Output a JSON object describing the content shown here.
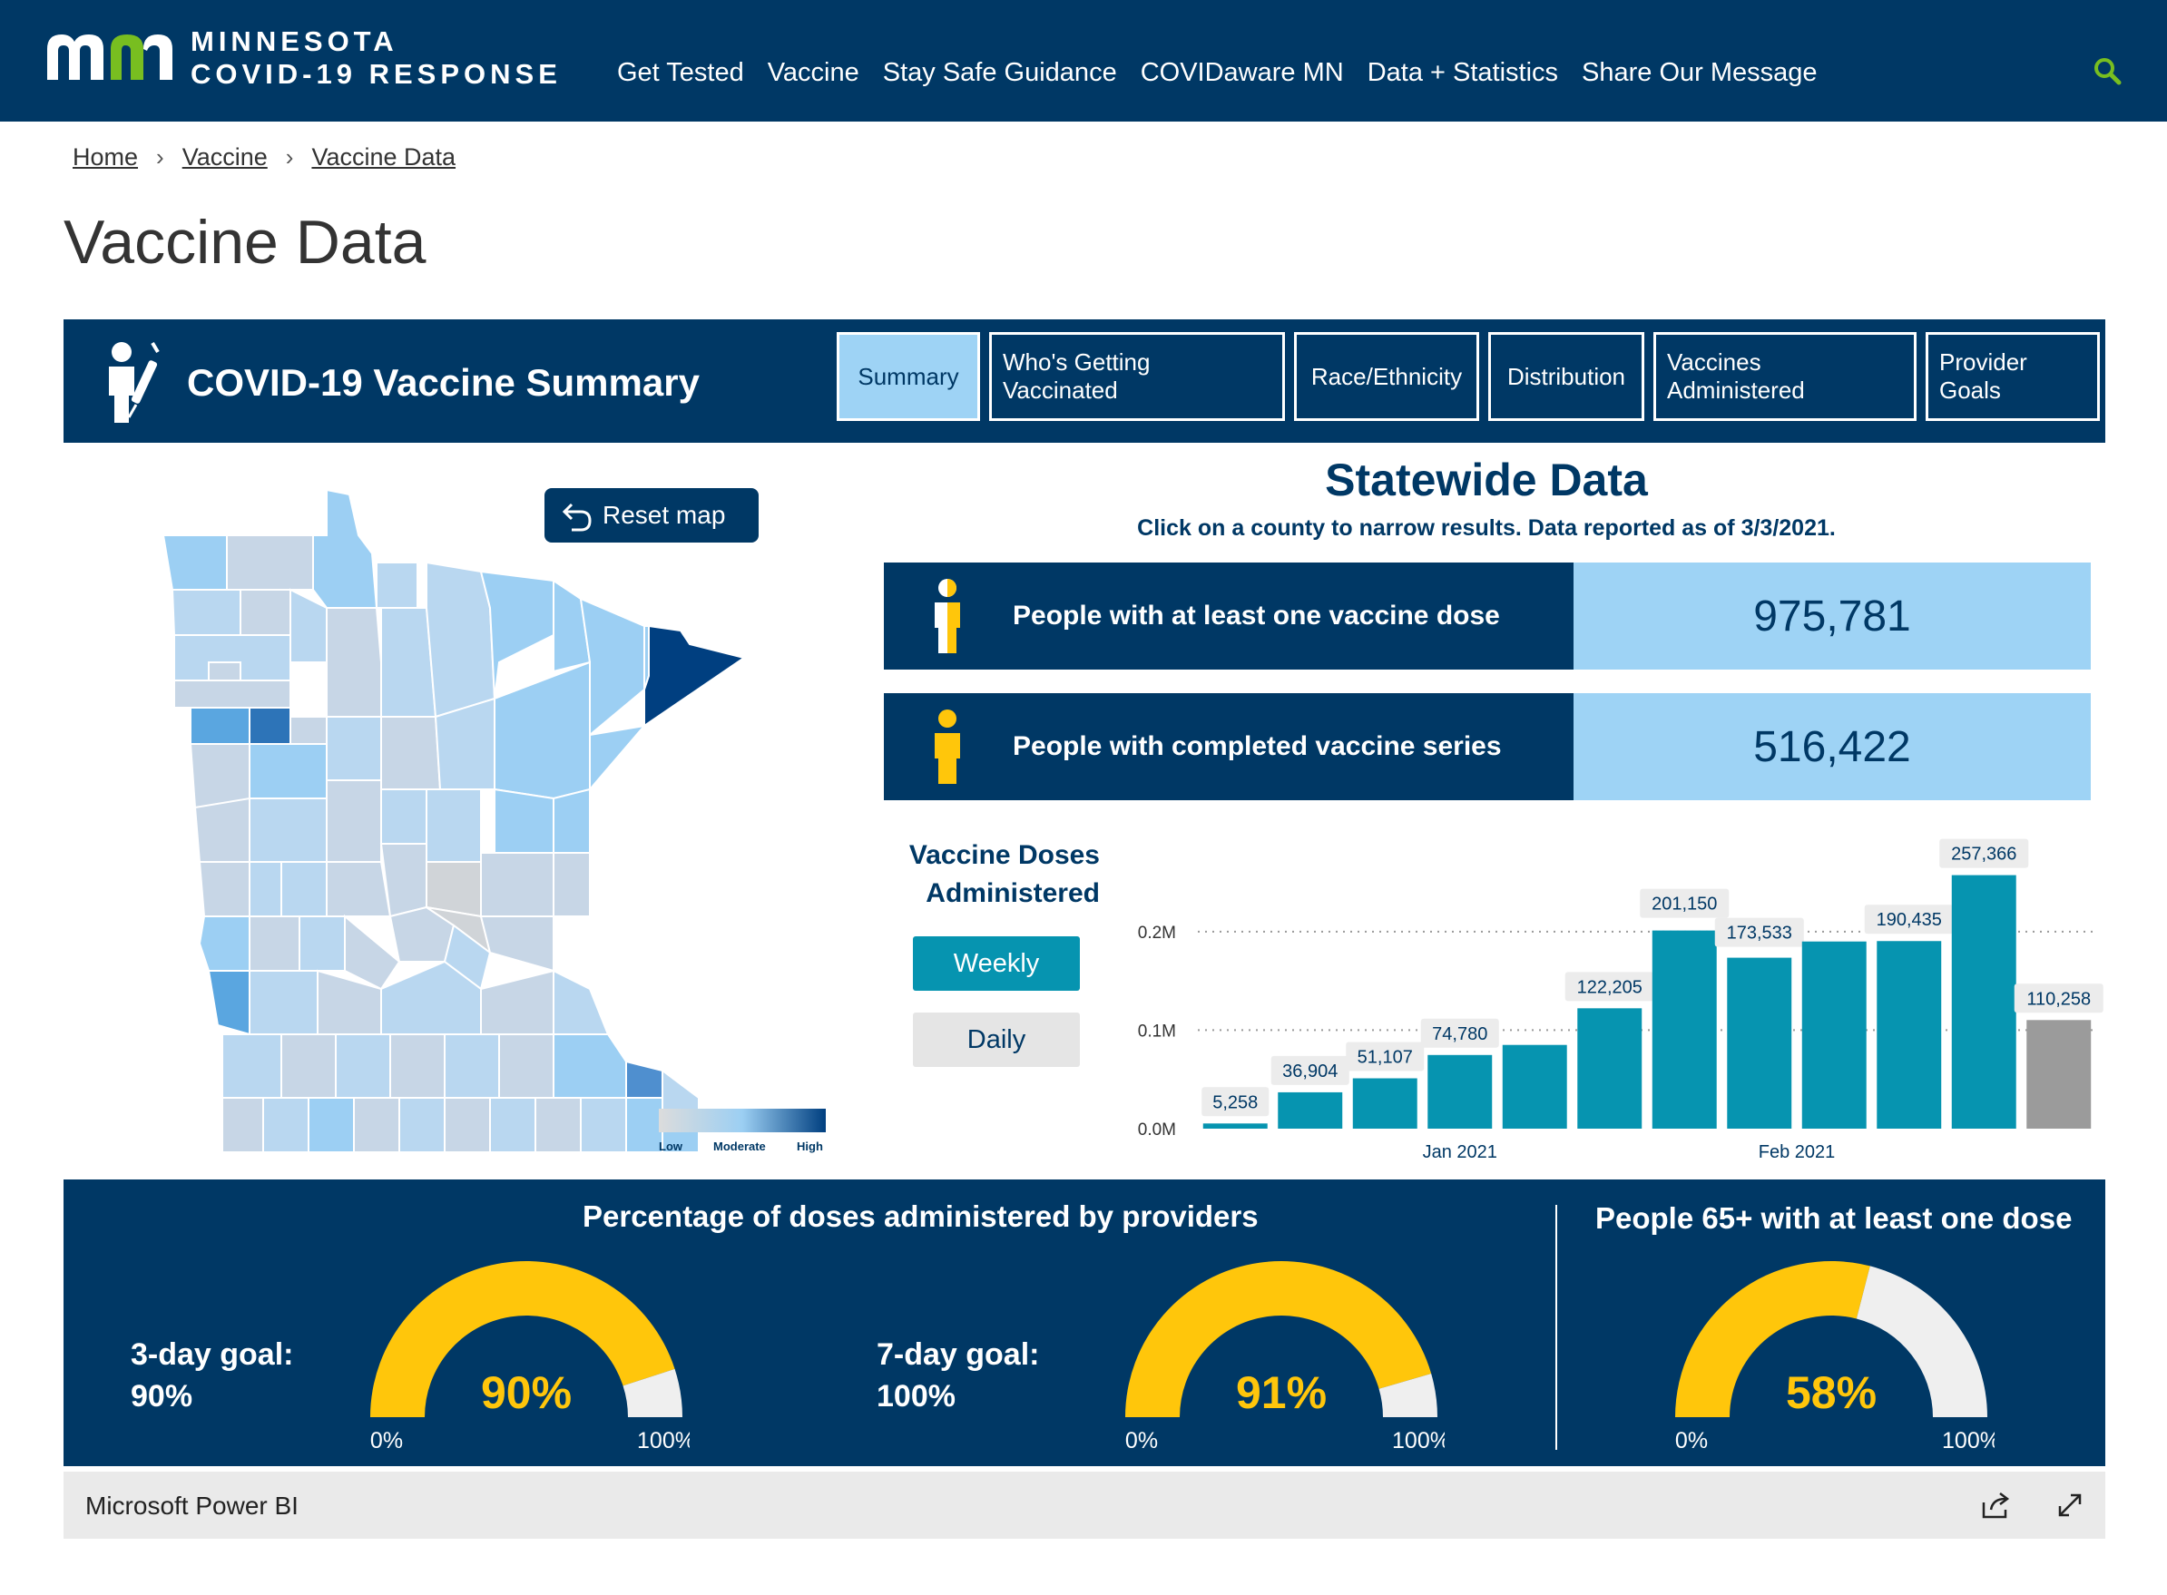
{
  "site": {
    "logo_line1": "MINNESOTA",
    "logo_line2": "COVID-19 RESPONSE",
    "nav": [
      "Get Tested",
      "Vaccine",
      "Stay Safe Guidance",
      "COVIDaware MN",
      "Data + Statistics",
      "Share Our Message"
    ]
  },
  "breadcrumb": [
    "Home",
    "Vaccine",
    "Vaccine Data"
  ],
  "page_title": "Vaccine Data",
  "dashboard": {
    "title": "COVID-19 Vaccine Summary",
    "tabs": [
      "Summary",
      "Who's Getting Vaccinated",
      "Race/Ethnicity",
      "Distribution",
      "Vaccines Administered",
      "Provider Goals"
    ],
    "active_tab": "Summary",
    "reset_map": "Reset map",
    "map_legend": {
      "low": "Low",
      "moderate": "Moderate",
      "high": "High"
    },
    "statewide_title": "Statewide Data",
    "statewide_sub": "Click on a county to narrow results. Data reported as of 3/3/2021.",
    "kpi1_label": "People with at least one vaccine dose",
    "kpi1_value": "975,781",
    "kpi2_label": "People with completed vaccine series",
    "kpi2_value": "516,422",
    "doses_title_1": "Vaccine Doses",
    "doses_title_2": "Administered",
    "weekly": "Weekly",
    "daily": "Daily",
    "providers_title": "Percentage of doses administered by providers",
    "goal3_line1": "3-day goal:",
    "goal3_line2": "90%",
    "goal7_line1": "7-day goal:",
    "goal7_line2": "100%",
    "people65_title": "People 65+ with at least one dose",
    "gauge_min": "0%",
    "gauge_max": "100%",
    "gauges": [
      {
        "label": "90%",
        "value": 0.9
      },
      {
        "label": "91%",
        "value": 0.91
      },
      {
        "label": "58%",
        "value": 0.58
      }
    ],
    "footer": "Microsoft Power BI"
  },
  "colors": {
    "navy": "#003865",
    "light_blue": "#9ed3f5",
    "teal": "#0694b0",
    "gold": "#ffc60b",
    "grey": "#9b9b9b"
  },
  "chart_data": {
    "type": "bar",
    "title": "Vaccine Doses Administered",
    "x_tick_labels": [
      "Jan 2021",
      "Feb 2021"
    ],
    "y_tick_labels": [
      "0.0M",
      "0.1M",
      "0.2M"
    ],
    "ylim": [
      0,
      0.28
    ],
    "values": [
      5258,
      36904,
      51107,
      74780,
      85000,
      122205,
      201150,
      173533,
      190000,
      190435,
      257366,
      110258
    ],
    "data_labels": [
      "5,258",
      "36,904",
      "51,107",
      "74,780",
      "",
      "122,205",
      "201,150",
      "173,533",
      "",
      "190,435",
      "257,366",
      "110,258"
    ],
    "partial_last": true
  }
}
